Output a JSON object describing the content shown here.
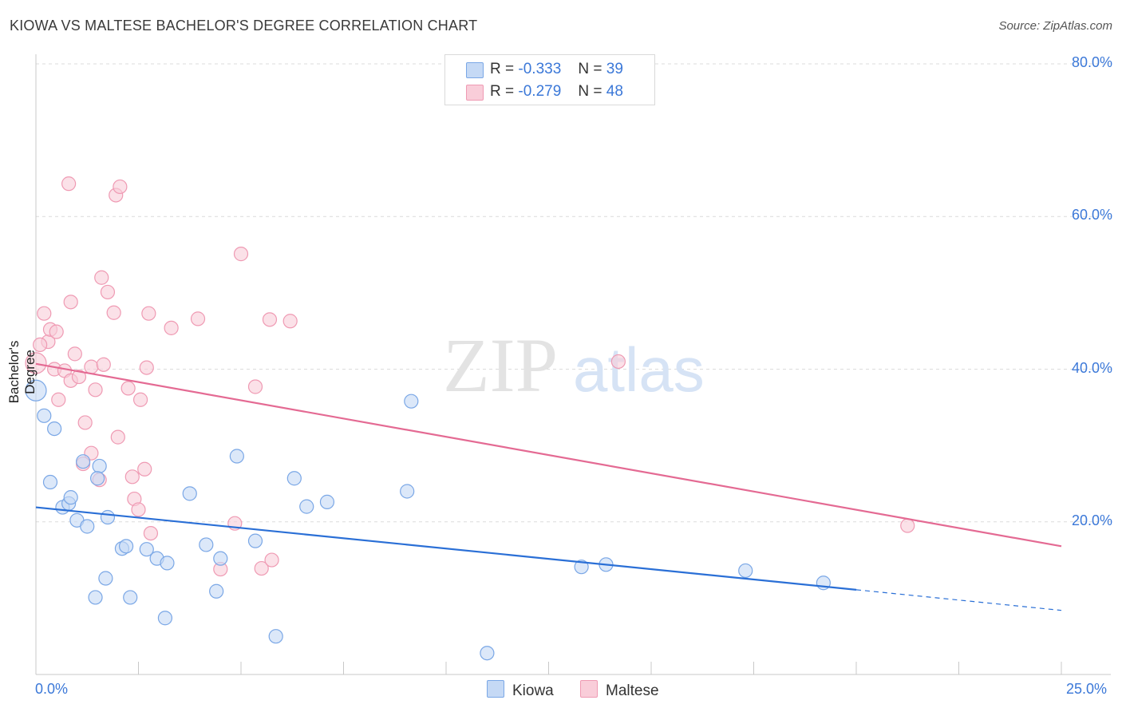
{
  "title": "KIOWA VS MALTESE BACHELOR'S DEGREE CORRELATION CHART",
  "source": "Source: ZipAtlas.com",
  "watermark": {
    "zip": "ZIP",
    "atlas": "atlas"
  },
  "legend": {
    "r_label": "R =",
    "n_label": "N =",
    "kiowa": {
      "r": "-0.333",
      "n": "39"
    },
    "maltese": {
      "r": "-0.279",
      "n": "48"
    }
  },
  "colors": {
    "kiowa_fill": "#c5d9f5",
    "kiowa_stroke": "#7aa7e6",
    "kiowa_line": "#2a6fd6",
    "maltese_fill": "#f9cdd9",
    "maltese_stroke": "#ef9ab3",
    "maltese_line": "#e46a93",
    "tick": "#3b78d8"
  },
  "chart_data": {
    "type": "scatter",
    "title": "KIOWA VS MALTESE BACHELOR'S DEGREE CORRELATION CHART",
    "xlabel": "",
    "ylabel": "Bachelor's Degree",
    "xlim": [
      0,
      25
    ],
    "ylim": [
      0,
      80
    ],
    "x_tick_labels": [
      "0.0%",
      "25.0%"
    ],
    "y_ticks": [
      20,
      40,
      60,
      80
    ],
    "y_tick_labels": [
      "20.0%",
      "40.0%",
      "60.0%",
      "80.0%"
    ],
    "legend_labels": [
      "Kiowa",
      "Maltese"
    ],
    "series": [
      {
        "name": "Kiowa",
        "r": -0.333,
        "n": 39,
        "trend": {
          "x0": 0,
          "y0": 21.9,
          "x1": 20,
          "y1": 11.1,
          "dash_to": 25,
          "dash_y": 8.4
        },
        "points": [
          {
            "x": 0.0,
            "y": 37.2,
            "big": true
          },
          {
            "x": 0.2,
            "y": 33.9
          },
          {
            "x": 0.45,
            "y": 32.2
          },
          {
            "x": 0.35,
            "y": 25.2
          },
          {
            "x": 0.65,
            "y": 21.9
          },
          {
            "x": 0.8,
            "y": 22.4
          },
          {
            "x": 0.85,
            "y": 23.2
          },
          {
            "x": 1.0,
            "y": 20.2
          },
          {
            "x": 1.25,
            "y": 19.4
          },
          {
            "x": 1.15,
            "y": 27.9
          },
          {
            "x": 1.55,
            "y": 27.3
          },
          {
            "x": 1.5,
            "y": 25.7
          },
          {
            "x": 1.75,
            "y": 20.6
          },
          {
            "x": 1.7,
            "y": 12.6
          },
          {
            "x": 1.45,
            "y": 10.1
          },
          {
            "x": 2.1,
            "y": 16.5
          },
          {
            "x": 2.3,
            "y": 10.1
          },
          {
            "x": 2.2,
            "y": 16.8
          },
          {
            "x": 2.7,
            "y": 16.4
          },
          {
            "x": 2.95,
            "y": 15.2
          },
          {
            "x": 3.2,
            "y": 14.6
          },
          {
            "x": 3.15,
            "y": 7.4
          },
          {
            "x": 3.75,
            "y": 23.7
          },
          {
            "x": 4.15,
            "y": 17.0
          },
          {
            "x": 4.4,
            "y": 10.9
          },
          {
            "x": 4.5,
            "y": 15.2
          },
          {
            "x": 4.9,
            "y": 28.6
          },
          {
            "x": 5.35,
            "y": 17.5
          },
          {
            "x": 5.85,
            "y": 5.0
          },
          {
            "x": 6.3,
            "y": 25.7
          },
          {
            "x": 6.6,
            "y": 22.0
          },
          {
            "x": 7.1,
            "y": 22.6
          },
          {
            "x": 9.05,
            "y": 24.0
          },
          {
            "x": 9.15,
            "y": 35.8
          },
          {
            "x": 11.0,
            "y": 2.8
          },
          {
            "x": 13.3,
            "y": 14.1
          },
          {
            "x": 13.9,
            "y": 14.4
          },
          {
            "x": 17.3,
            "y": 13.6
          },
          {
            "x": 19.2,
            "y": 12.0
          }
        ]
      },
      {
        "name": "Maltese",
        "r": -0.279,
        "n": 48,
        "trend": {
          "x0": 0,
          "y0": 40.7,
          "x1": 25,
          "y1": 16.8
        },
        "points": [
          {
            "x": 0.0,
            "y": 40.8,
            "big": true
          },
          {
            "x": 0.2,
            "y": 47.3
          },
          {
            "x": 0.3,
            "y": 43.6
          },
          {
            "x": 0.35,
            "y": 45.2
          },
          {
            "x": 0.5,
            "y": 44.9
          },
          {
            "x": 0.45,
            "y": 40.0
          },
          {
            "x": 0.55,
            "y": 36.0
          },
          {
            "x": 0.7,
            "y": 39.8
          },
          {
            "x": 0.8,
            "y": 64.3
          },
          {
            "x": 0.85,
            "y": 38.5
          },
          {
            "x": 0.85,
            "y": 48.8
          },
          {
            "x": 0.95,
            "y": 42.0
          },
          {
            "x": 1.05,
            "y": 39.0
          },
          {
            "x": 1.2,
            "y": 33.0
          },
          {
            "x": 1.15,
            "y": 27.6
          },
          {
            "x": 1.35,
            "y": 40.3
          },
          {
            "x": 1.35,
            "y": 29.0
          },
          {
            "x": 1.45,
            "y": 37.3
          },
          {
            "x": 1.55,
            "y": 25.5
          },
          {
            "x": 1.6,
            "y": 52.0
          },
          {
            "x": 1.65,
            "y": 40.6
          },
          {
            "x": 1.75,
            "y": 50.1
          },
          {
            "x": 1.9,
            "y": 47.4
          },
          {
            "x": 1.95,
            "y": 62.8
          },
          {
            "x": 2.05,
            "y": 63.9
          },
          {
            "x": 2.0,
            "y": 31.1
          },
          {
            "x": 2.25,
            "y": 37.5
          },
          {
            "x": 2.35,
            "y": 25.9
          },
          {
            "x": 2.4,
            "y": 23.0
          },
          {
            "x": 2.5,
            "y": 21.6
          },
          {
            "x": 2.55,
            "y": 36.0
          },
          {
            "x": 2.65,
            "y": 26.9
          },
          {
            "x": 2.7,
            "y": 40.2
          },
          {
            "x": 2.75,
            "y": 47.3
          },
          {
            "x": 2.8,
            "y": 18.5
          },
          {
            "x": 3.3,
            "y": 45.4
          },
          {
            "x": 3.95,
            "y": 46.6
          },
          {
            "x": 4.5,
            "y": 13.8
          },
          {
            "x": 4.85,
            "y": 19.8
          },
          {
            "x": 5.0,
            "y": 55.1
          },
          {
            "x": 5.35,
            "y": 37.7
          },
          {
            "x": 5.5,
            "y": 13.9
          },
          {
            "x": 5.7,
            "y": 46.5
          },
          {
            "x": 5.75,
            "y": 15.0
          },
          {
            "x": 6.2,
            "y": 46.3
          },
          {
            "x": 14.2,
            "y": 41.0
          },
          {
            "x": 21.25,
            "y": 19.5
          },
          {
            "x": 0.1,
            "y": 43.2
          }
        ]
      }
    ]
  }
}
